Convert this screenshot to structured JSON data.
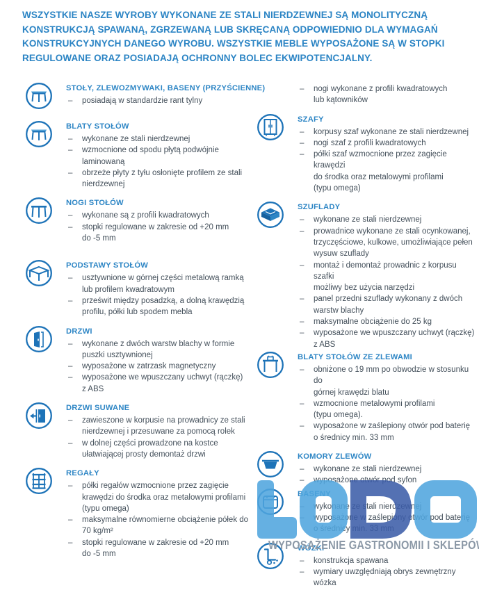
{
  "colors": {
    "intro_blue": "#2b84c4",
    "heading_blue": "#2e86c5",
    "body_text": "#44505b",
    "icon_blue": "#1d73b8",
    "logo_light_blue": "#4fa5de",
    "logo_dark_blue": "#3b5ca8",
    "tagline_gray": "#8c99a7"
  },
  "intro": {
    "text": "WSZYSTKIE NASZE WYROBY  WYKONANE ZE STALI NIERDZEWNEJ SĄ MONOLITYCZNĄ\nKONSTRUKCJĄ SPAWANĄ, ZGRZEWANĄ LUB SKRĘCANĄ ODPOWIEDNIO DLA WYMAGAŃ\nKONSTRUKCYJNYCH DANEGO WYROBU. WSZYSTKIE MEBLE WYPOSAŻONE SĄ W STOPKI\nREGULOWANE ORAZ POSIADAJĄ OCHRONNY BOLEC EKWIPOTENCJALNY."
  },
  "columns": {
    "left": [
      {
        "id": "stoly-zlewozmywaki-baseny",
        "icon": "table-icon",
        "title": "STOŁY, ZLEWOZMYWAKI, BASENY (PRZYŚCIENNE)",
        "bullets": [
          "posiadają w standardzie rant tylny"
        ]
      },
      {
        "id": "blaty-stolow",
        "icon": "table-top-icon",
        "title": "BLATY STOŁÓW",
        "bullets": [
          "wykonane ze stali nierdzewnej",
          "wzmocnione od spodu płytą podwójnie\nlaminowaną",
          "obrzeże płyty z tyłu osłonięte profilem ze stali\nnierdzewnej"
        ]
      },
      {
        "id": "nogi-stolow",
        "icon": "table-legs-icon",
        "title": "NOGI STOŁÓW",
        "bullets": [
          "wykonane są z profili kwadratowych",
          "stopki regulowane w zakresie od +20 mm\ndo -5 mm"
        ]
      },
      {
        "id": "podstawy-stolow",
        "icon": "table-base-icon",
        "title": "PODSTAWY STOŁÓW",
        "bullets": [
          "usztywnione w górnej części  metalową ramką\nlub profilem kwadratowym",
          "prześwit między posadzką, a dolną krawędzią\nprofilu, półki lub spodem mebla"
        ]
      },
      {
        "id": "drzwi",
        "icon": "door-icon",
        "title": "DRZWI",
        "bullets": [
          "wykonane z dwóch warstw blachy w formie\npuszki usztywnionej",
          "wyposażone w zatrzask magnetyczny",
          "wyposażone we wpuszczany uchwyt (rączkę)\nz ABS"
        ]
      },
      {
        "id": "drzwi-suwane",
        "icon": "sliding-door-icon",
        "title": "DRZWI SUWANE",
        "bullets": [
          "zawieszone w korpusie na prowadnicy ze stali\nnierdzewnej i przesuwane za pomocą rolek",
          "w dolnej części prowadzone na kostce\nułatwiającej prosty demontaż drzwi"
        ]
      },
      {
        "id": "regaly",
        "icon": "shelf-rack-icon",
        "title": "REGAŁY",
        "bullets": [
          "półki regałów wzmocnione przez zagięcie\nkrawędzi do środka oraz metalowymi profilami\n(typu omega)",
          "maksymalne równomierne obciążenie półek  do\n70 kg/m²",
          "stopki regulowane w zakresie od +20 mm\ndo -5 mm"
        ]
      }
    ],
    "right": [
      {
        "id": "regaly-cd",
        "icon": null,
        "title": null,
        "bullets": [
          "nogi wykonane z profili kwadratowych\nlub kątowników"
        ]
      },
      {
        "id": "szafy",
        "icon": "cabinet-icon",
        "title": "SZAFY",
        "bullets": [
          "korpusy szaf wykonane ze stali nierdzewnej",
          "nogi szaf  z profili kwadratowych",
          "półki szaf wzmocnione przez zagięcie krawędzi\ndo środka oraz metalowymi profilami\n(typu omega)"
        ]
      },
      {
        "id": "szuflady",
        "icon": "drawer-icon",
        "title": "SZUFLADY",
        "bullets": [
          "wykonane ze stali nierdzewnej",
          "prowadnice wykonane ze stali ocynkowanej,\ntrzyczęściowe, kulkowe, umożliwiające pełen\nwysuw szuflady",
          "montaż i demontaż prowadnic z korpusu szafki\nmożliwy bez użycia narzędzi",
          "panel przedni szuflady wykonany z dwóch\nwarstw blachy",
          "maksymalne obciążenie do 25 kg",
          "wyposażone we wpuszczany uchwyt (rączkę)\nz ABS"
        ]
      },
      {
        "id": "blaty-stolow-ze-zlewami",
        "icon": "sink-table-icon",
        "title": "BLATY STOŁÓW ZE ZLEWAMI",
        "bullets": [
          "obniżone o 19 mm po obwodzie w stosunku do\ngórnej krawędzi blatu",
          "wzmocnione  metalowymi profilami\n(typu omega).",
          "wyposażone w zaślepiony otwór pod baterię\no średnicy min. 33 mm"
        ]
      },
      {
        "id": "komory-zlewow",
        "icon": "sink-bowl-icon",
        "title": "KOMORY ZLEWÓW",
        "bullets": [
          "wykonane ze stali nierdzewnej",
          "wyposażone otwór pod syfon"
        ]
      },
      {
        "id": "baseny",
        "icon": "basin-icon",
        "title": "BASENY",
        "bullets": [
          "wykonane ze stali nierdzewnej",
          "wyposażone w zaślepiony otwór pod baterię\no średnicy min. 33 mm"
        ]
      },
      {
        "id": "wozki",
        "icon": "cart-icon",
        "title": "WÓZKI",
        "bullets": [
          "konstrukcja spawana",
          "wymiary uwzględniają obrys zewnętrzny wózka"
        ]
      }
    ]
  },
  "logo": {
    "text": "LODO",
    "letters": [
      {
        "char": "L",
        "color": "#4fa5de"
      },
      {
        "char": "O",
        "color": "#4fa5de"
      },
      {
        "char": "D",
        "color": "#3b5ca8"
      },
      {
        "char": "O",
        "color": "#4fa5de"
      }
    ],
    "tagline": "WYPOSAŻENIE GASTRONOMII I SKLEPÓW"
  }
}
